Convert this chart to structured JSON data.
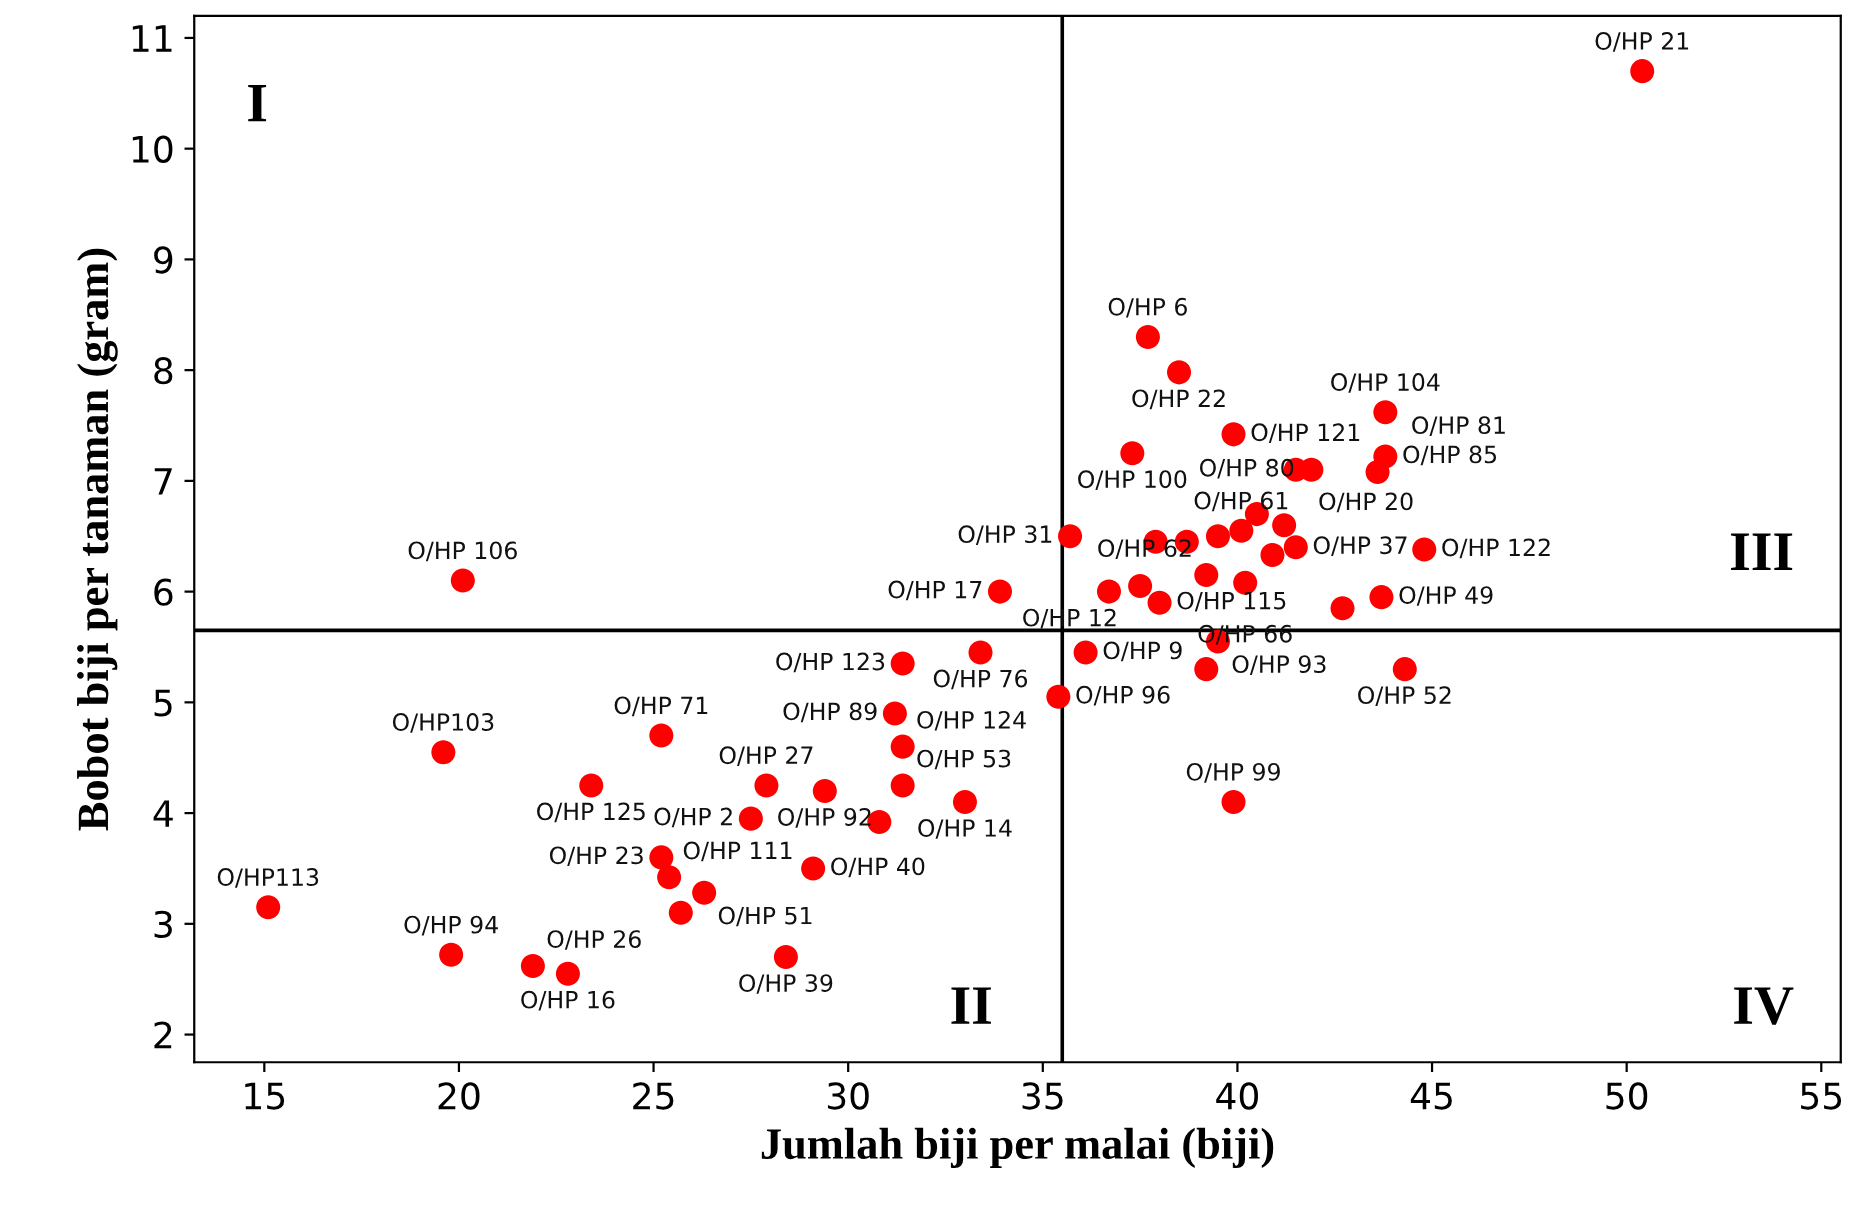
{
  "chart_data": {
    "type": "scatter",
    "xlabel": "Jumlah biji per malai (biji)",
    "ylabel": "Bobot biji per tanaman (gram)",
    "xlim": [
      13.2,
      55.5
    ],
    "ylim": [
      1.75,
      11.2
    ],
    "xticks": [
      15,
      20,
      25,
      30,
      35,
      40,
      45,
      50,
      55
    ],
    "yticks": [
      2,
      3,
      4,
      5,
      6,
      7,
      8,
      9,
      10,
      11
    ],
    "grid": false,
    "legend": false,
    "marker": "circle",
    "series": [
      {
        "color": "#ff0000",
        "x": [
          50.4,
          20.1,
          19.6,
          15.1,
          19.8,
          21.9,
          22.8,
          25.2,
          23.4,
          27.9,
          29.4,
          27.5,
          25.2,
          25.4,
          26.3,
          25.7,
          29.1,
          30.8,
          28.4,
          31.4,
          31.4,
          31.2,
          31.4,
          33.0,
          33.4,
          35.4,
          36.1,
          37.7,
          38.5,
          39.9,
          37.3,
          41.5,
          41.9,
          43.8,
          43.8,
          43.6,
          35.7,
          33.9,
          36.7,
          37.5,
          38.0,
          39.2,
          40.2,
          40.1,
          40.9,
          41.5,
          43.7,
          42.7,
          44.8,
          39.5,
          39.2,
          44.3,
          39.9,
          38.7,
          39.5,
          40.5,
          41.2,
          37.9
        ],
        "values": [
          10.7,
          6.1,
          4.55,
          3.15,
          2.72,
          2.62,
          2.55,
          4.7,
          4.25,
          4.25,
          4.2,
          3.95,
          3.6,
          3.42,
          3.28,
          3.1,
          3.5,
          3.92,
          2.7,
          4.25,
          4.6,
          4.9,
          5.35,
          4.1,
          5.45,
          5.05,
          5.45,
          8.3,
          7.98,
          7.42,
          7.25,
          7.1,
          7.1,
          7.62,
          7.22,
          7.08,
          6.5,
          6.0,
          6.0,
          6.05,
          5.9,
          6.15,
          6.08,
          6.55,
          6.33,
          6.4,
          5.95,
          5.85,
          6.38,
          5.55,
          5.3,
          5.3,
          4.1,
          6.45,
          6.5,
          6.7,
          6.6,
          6.45
        ],
        "value_labels": [
          "O/HP 21",
          "O/HP 106",
          "O/HP103",
          "O/HP113",
          "O/HP 94",
          "O/HP 26",
          "O/HP 16",
          "O/HP 71",
          "O/HP 125",
          "O/HP 27",
          "O/HP 92",
          "O/HP 2",
          "O/HP 23",
          "O/HP 111",
          "O/HP 51",
          null,
          "O/HP 40",
          null,
          "O/HP 39",
          "O/HP 53",
          "O/HP 124",
          "O/HP 89",
          "O/HP 123",
          "O/HP 14",
          "O/HP 76",
          "O/HP 96",
          "O/HP 9",
          "O/HP 6",
          "O/HP 22",
          "O/HP 121",
          "O/HP 100",
          "O/HP 20",
          "O/HP 80",
          "O/HP 104",
          "O/HP 85",
          "O/HP 81",
          "O/HP 31",
          "O/HP 17",
          null,
          "O/HP 12",
          "O/HP 115",
          "O/HP 62",
          "O/HP 66",
          "O/HP 61",
          null,
          "O/HP 37",
          "O/HP 49",
          null,
          "O/HP 122",
          "O/HP 93",
          null,
          "O/HP 52",
          "O/HP 99",
          null,
          null,
          null,
          null,
          null
        ]
      }
    ],
    "ref_lines": [
      {
        "axis": "x",
        "value": 35.5,
        "color": "#000000"
      },
      {
        "axis": "y",
        "value": 5.65,
        "color": "#000000"
      }
    ],
    "annotations": [
      "I",
      "II",
      "III",
      "IV"
    ]
  }
}
